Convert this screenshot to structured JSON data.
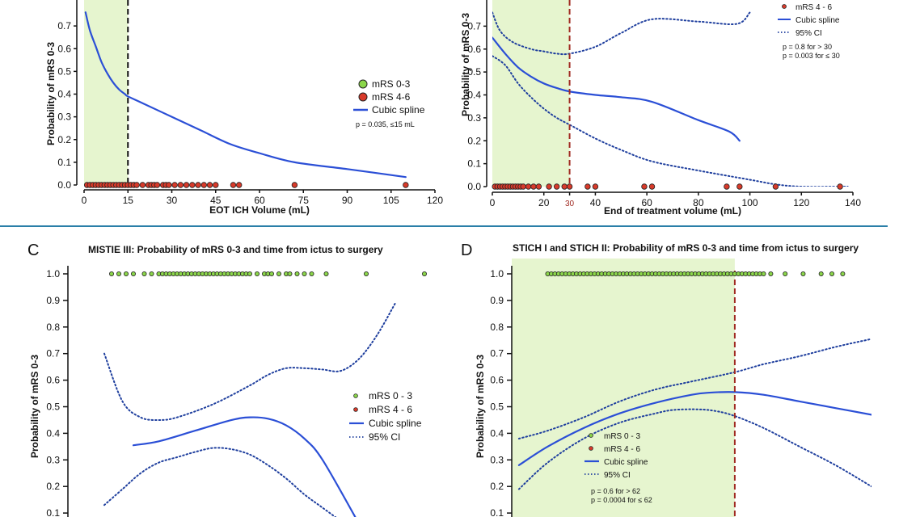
{
  "chart_data": [
    {
      "id": "A",
      "type": "line",
      "panel_label": "",
      "title": "",
      "xlabel": "EOT ICH Volume (mL)",
      "ylabel": "Probability of mRS 0-3",
      "xlim": [
        0,
        120
      ],
      "ylim": [
        0,
        0.8
      ],
      "xticks": [
        0,
        15,
        30,
        45,
        60,
        75,
        90,
        105,
        120
      ],
      "yticks": [
        0.0,
        0.1,
        0.2,
        0.3,
        0.4,
        0.5,
        0.6,
        0.7
      ],
      "threshold": {
        "x": 15,
        "style": "black-dashed"
      },
      "shaded_range": [
        0,
        15
      ],
      "series": [
        {
          "name": "Cubic spline",
          "style": "solid",
          "x": [
            0.5,
            2,
            4,
            6,
            8,
            10,
            12,
            14,
            15,
            20,
            30,
            40,
            50,
            60,
            72,
            90,
            110
          ],
          "y": [
            0.76,
            0.68,
            0.61,
            0.54,
            0.49,
            0.45,
            0.42,
            0.4,
            0.39,
            0.36,
            0.3,
            0.24,
            0.18,
            0.14,
            0.1,
            0.07,
            0.035
          ]
        }
      ],
      "points": [
        {
          "group": "mRS 4-6",
          "y": 0.0,
          "x": [
            1,
            2,
            3,
            4,
            5,
            6,
            7,
            8,
            9,
            10,
            11,
            12,
            13,
            14,
            15,
            16,
            17,
            18,
            20,
            22,
            23,
            24,
            25,
            27,
            28,
            29,
            31,
            33,
            35,
            37,
            39,
            41,
            43,
            45,
            51,
            53,
            72,
            110
          ]
        }
      ],
      "legend": [
        "mRS 0-3",
        "mRS 4-6",
        "Cubic spline"
      ],
      "annotations": [
        "p = 0.035, ≤15 mL"
      ]
    },
    {
      "id": "B",
      "type": "line",
      "panel_label": "",
      "title": "",
      "xlabel": "End of treatment volume (mL)",
      "ylabel": "Probability of mRS 0-3",
      "xlim": [
        0,
        140
      ],
      "ylim": [
        0,
        0.8
      ],
      "xticks": [
        0,
        20,
        30,
        40,
        60,
        80,
        100,
        120,
        140
      ],
      "yticks": [
        0.0,
        0.1,
        0.2,
        0.3,
        0.4,
        0.5,
        0.6,
        0.7
      ],
      "threshold": {
        "x": 30,
        "style": "red-dashed",
        "label": "30"
      },
      "shaded_range": [
        0,
        30
      ],
      "series": [
        {
          "name": "Cubic spline",
          "style": "solid",
          "x": [
            0,
            5,
            10,
            15,
            20,
            25,
            30,
            40,
            50,
            62,
            80,
            92,
            96
          ],
          "y": [
            0.65,
            0.58,
            0.52,
            0.48,
            0.45,
            0.43,
            0.415,
            0.4,
            0.39,
            0.37,
            0.29,
            0.24,
            0.2
          ]
        },
        {
          "name": "95% CI upper",
          "style": "dotted",
          "x": [
            0,
            3,
            8,
            15,
            20,
            25,
            30,
            40,
            50,
            62,
            80,
            95,
            100
          ],
          "y": [
            0.76,
            0.68,
            0.63,
            0.6,
            0.59,
            0.58,
            0.58,
            0.61,
            0.67,
            0.73,
            0.72,
            0.71,
            0.76
          ]
        },
        {
          "name": "95% CI lower",
          "style": "dotted",
          "x": [
            0,
            5,
            10,
            15,
            20,
            25,
            30,
            40,
            50,
            62,
            80,
            100,
            110,
            120,
            138
          ],
          "y": [
            0.57,
            0.53,
            0.45,
            0.39,
            0.34,
            0.3,
            0.27,
            0.21,
            0.16,
            0.11,
            0.07,
            0.03,
            0.01,
            0.0,
            0.0
          ]
        }
      ],
      "points": [
        {
          "group": "mRS 4-6",
          "y": 0.0,
          "x": [
            1,
            2,
            3,
            4,
            5,
            6,
            7,
            8,
            9,
            10,
            11,
            12,
            14,
            16,
            18,
            22,
            25,
            28,
            30,
            37,
            40,
            59,
            62,
            91,
            96,
            110,
            135
          ]
        }
      ],
      "legend": [
        "mRS 4 - 6",
        "Cubic spline",
        "95% CI"
      ],
      "annotations": [
        "p = 0.8 for > 30",
        "p = 0.003 for ≤ 30"
      ]
    },
    {
      "id": "C",
      "type": "line",
      "panel_label": "C",
      "title": "MISTIE III: Probability of mRS 0-3 and time from ictus to surgery",
      "xlabel": "",
      "ylabel": "Probability of mRS 0-3",
      "xlim": [
        0,
        100
      ],
      "ylim": [
        0,
        1.0
      ],
      "xticks": [],
      "yticks": [
        0.1,
        0.2,
        0.3,
        0.4,
        0.5,
        0.6,
        0.7,
        0.8,
        0.9,
        1.0
      ],
      "threshold": null,
      "shaded_range": null,
      "series": [
        {
          "name": "Cubic spline",
          "style": "solid",
          "x": [
            18,
            25,
            35,
            45,
            50,
            55,
            60,
            65,
            70,
            80
          ],
          "y": [
            0.355,
            0.37,
            0.41,
            0.45,
            0.46,
            0.455,
            0.43,
            0.38,
            0.3,
            0.06
          ]
        },
        {
          "name": "95% CI upper",
          "style": "dotted",
          "x": [
            10,
            15,
            20,
            25,
            30,
            40,
            50,
            55,
            60,
            65,
            70,
            75,
            80,
            85,
            90
          ],
          "y": [
            0.7,
            0.52,
            0.46,
            0.45,
            0.46,
            0.51,
            0.58,
            0.62,
            0.645,
            0.645,
            0.64,
            0.635,
            0.68,
            0.77,
            0.89
          ]
        },
        {
          "name": "95% CI lower",
          "style": "dotted",
          "x": [
            10,
            15,
            20,
            25,
            30,
            35,
            40,
            45,
            50,
            55,
            60,
            65,
            70,
            75
          ],
          "y": [
            0.13,
            0.19,
            0.25,
            0.29,
            0.31,
            0.33,
            0.345,
            0.34,
            0.32,
            0.28,
            0.23,
            0.17,
            0.12,
            0.07
          ]
        }
      ],
      "points": [
        {
          "group": "mRS 0-3",
          "y": 1.0,
          "x": [
            12,
            14,
            16,
            18,
            21,
            23,
            25,
            26,
            27,
            28,
            29,
            30,
            31,
            32,
            33,
            34,
            35,
            36,
            37,
            38,
            39,
            40,
            41,
            42,
            43,
            44,
            45,
            46,
            47,
            48,
            49,
            50,
            52,
            54,
            55,
            56,
            58,
            60,
            61,
            63,
            65,
            67,
            71,
            82,
            98
          ]
        }
      ],
      "legend": [
        "mRS 0 - 3",
        "mRS 4 - 6",
        "Cubic spline",
        "95% CI"
      ],
      "annotations": []
    },
    {
      "id": "D",
      "type": "line",
      "panel_label": "D",
      "title": "STICH I and STICH II: Probability of mRS 0-3 and time from ictus to surgery",
      "xlabel": "",
      "ylabel": "Probability of mRS 0-3",
      "xlim": [
        0,
        100
      ],
      "ylim": [
        0,
        1.0
      ],
      "xticks": [],
      "yticks": [
        0.1,
        0.2,
        0.3,
        0.4,
        0.5,
        0.6,
        0.7,
        0.8,
        0.9,
        1.0
      ],
      "threshold": {
        "x": 62,
        "style": "red-dashed"
      },
      "shaded_range": [
        0,
        62
      ],
      "series": [
        {
          "name": "Cubic spline",
          "style": "solid",
          "x": [
            2,
            10,
            20,
            30,
            40,
            50,
            55,
            62,
            70,
            80,
            90,
            100
          ],
          "y": [
            0.28,
            0.35,
            0.42,
            0.475,
            0.515,
            0.545,
            0.553,
            0.555,
            0.545,
            0.52,
            0.495,
            0.47
          ]
        },
        {
          "name": "95% CI upper",
          "style": "dotted",
          "x": [
            2,
            10,
            20,
            30,
            40,
            50,
            62,
            70,
            80,
            90,
            100
          ],
          "y": [
            0.38,
            0.41,
            0.46,
            0.52,
            0.565,
            0.595,
            0.63,
            0.66,
            0.69,
            0.725,
            0.755
          ]
        },
        {
          "name": "95% CI lower",
          "style": "dotted",
          "x": [
            2,
            10,
            20,
            30,
            40,
            45,
            52,
            57,
            62,
            70,
            80,
            90,
            100
          ],
          "y": [
            0.19,
            0.29,
            0.38,
            0.44,
            0.475,
            0.488,
            0.49,
            0.483,
            0.465,
            0.42,
            0.35,
            0.28,
            0.2
          ]
        }
      ],
      "points": [
        {
          "group": "mRS 0-3",
          "y": 1.0,
          "x": [
            10,
            11,
            12,
            13,
            14,
            15,
            16,
            17,
            18,
            19,
            20,
            21,
            22,
            23,
            24,
            25,
            26,
            27,
            28,
            29,
            30,
            31,
            32,
            33,
            34,
            35,
            36,
            37,
            38,
            39,
            40,
            41,
            42,
            43,
            44,
            45,
            46,
            47,
            48,
            49,
            50,
            51,
            52,
            53,
            54,
            55,
            56,
            57,
            58,
            59,
            60,
            61,
            62,
            63,
            64,
            65,
            66,
            67,
            68,
            69,
            70,
            72,
            76,
            81,
            86,
            89,
            92
          ]
        }
      ],
      "legend": [
        "mRS 0 - 3",
        "mRS 4 - 6",
        "Cubic spline",
        "95% CI"
      ],
      "annotations": [
        "p = 0.6 for > 62",
        "p = 0.0004 for ≤ 62"
      ]
    }
  ],
  "colors": {
    "spline": "#2b4fd6",
    "ci": "#1f3f9e",
    "green_point": "#8bd64a",
    "red_point": "#d83a2a",
    "shade": "#e6f5cf",
    "threshold_red": "#a02a22",
    "separator": "#2a7fa8"
  }
}
